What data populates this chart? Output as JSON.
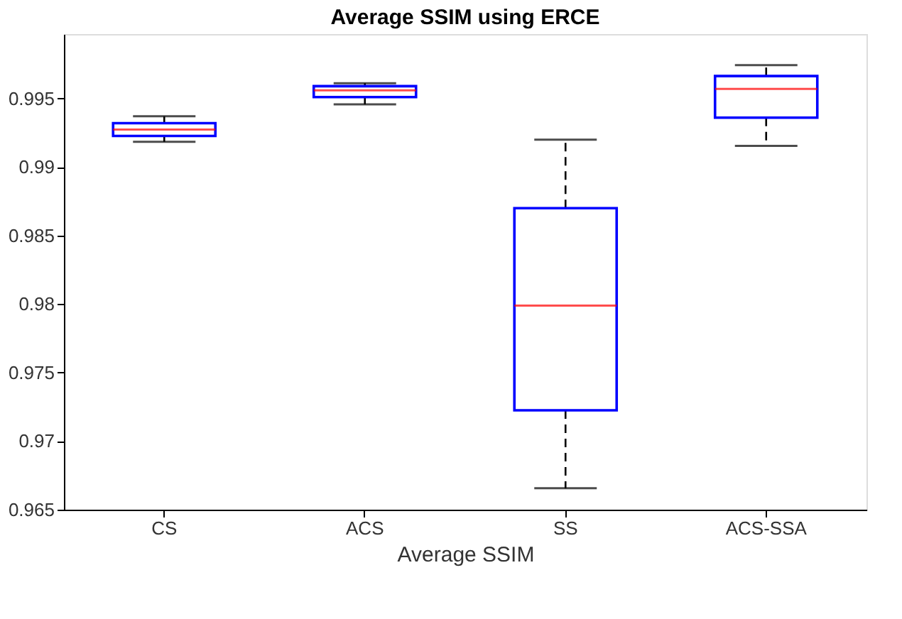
{
  "chart_data": {
    "type": "box",
    "title": "Average SSIM using ERCE",
    "xlabel": "Average SSIM",
    "categories": [
      "CS",
      "ACS",
      "SS",
      "ACS-SSA"
    ],
    "series": [
      {
        "color": "#0000ff",
        "boxes": [
          {
            "low": 0.99184,
            "q1": 0.99227,
            "median": 0.99274,
            "q3": 0.9932,
            "high": 0.9937
          },
          {
            "low": 0.99457,
            "q1": 0.9951,
            "median": 0.9956,
            "q3": 0.9959,
            "high": 0.99611
          },
          {
            "low": 0.96657,
            "q1": 0.97225,
            "median": 0.97989,
            "q3": 0.987,
            "high": 0.992
          },
          {
            "low": 0.99154,
            "q1": 0.9936,
            "median": 0.9957,
            "q3": 0.99664,
            "high": 0.99744
          }
        ]
      }
    ],
    "line_style": "dashed",
    "grid": false,
    "ylim": [
      0.965,
      0.9997
    ],
    "yticks": [
      0.965,
      0.97,
      0.975,
      0.98,
      0.985,
      0.99,
      0.995
    ]
  }
}
